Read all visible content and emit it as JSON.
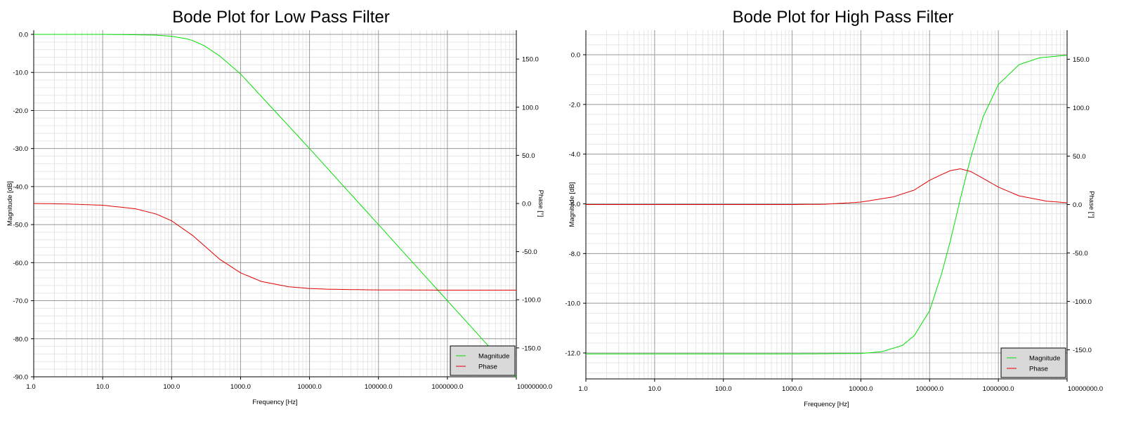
{
  "chart_data": [
    {
      "type": "line",
      "title": "Bode Plot for Low Pass Filter",
      "xlabel": "Frequency [Hz]",
      "ylabel": "Magnitude [dB]",
      "y2label": "Phase [°]",
      "xscale": "log",
      "xlim": [
        1,
        10000000
      ],
      "ylim": [
        -90,
        0
      ],
      "y2lim": [
        -180,
        180
      ],
      "xticks": [
        "1.0",
        "10.0",
        "100.0",
        "1000.0",
        "10000.0",
        "100000.0",
        "1000000.0",
        "10000000.0"
      ],
      "yticks": [
        "0.0",
        "-10.0",
        "-20.0",
        "-30.0",
        "-40.0",
        "-50.0",
        "-60.0",
        "-70.0",
        "-80.0",
        "-90.0"
      ],
      "y2ticks": [
        "150.0",
        "100.0",
        "50.0",
        "0.0",
        "-50.0",
        "-100.0",
        "-150.0"
      ],
      "grid": true,
      "legend_position": "bottom-right",
      "series": [
        {
          "name": "Magnitude",
          "axis": "left",
          "color": "#00e000",
          "x": [
            1,
            10,
            30,
            60,
            100,
            160,
            200,
            300,
            500,
            1000,
            2000,
            5000,
            10000,
            100000,
            1000000,
            10000000
          ],
          "y": [
            0,
            0,
            -0.1,
            -0.2,
            -0.5,
            -1.1,
            -1.6,
            -3,
            -5.7,
            -10.4,
            -16.3,
            -24.1,
            -30,
            -50,
            -70,
            -90
          ]
        },
        {
          "name": "Phase",
          "axis": "right",
          "color": "#e00000",
          "x": [
            1,
            3,
            10,
            30,
            60,
            100,
            200,
            300,
            500,
            1000,
            2000,
            5000,
            10000,
            20000,
            100000,
            1000000,
            10000000
          ],
          "y": [
            0,
            -0.5,
            -1.8,
            -5.5,
            -11,
            -18,
            -33,
            -44,
            -58,
            -72,
            -81,
            -86.5,
            -88.3,
            -89.1,
            -89.8,
            -90,
            -90
          ]
        }
      ]
    },
    {
      "type": "line",
      "title": "Bode Plot for High Pass Filter",
      "xlabel": "Frequency [Hz]",
      "ylabel": "Magnitude [dB]",
      "y2label": "Phase [°]",
      "xscale": "log",
      "xlim": [
        1,
        10000000
      ],
      "ylim": [
        -13,
        0.8
      ],
      "y2lim": [
        -180,
        180
      ],
      "xticks": [
        "1.0",
        "10.0",
        "100.0",
        "1000.0",
        "10000.0",
        "100000.0",
        "1000000.0",
        "10000000.0"
      ],
      "yticks": [
        "0.0",
        "-2.0",
        "-4.0",
        "-6.0",
        "-8.0",
        "-10.0",
        "-12.0"
      ],
      "y2ticks": [
        "150.0",
        "100.0",
        "50.0",
        "0.0",
        "-50.0",
        "-100.0",
        "-150.0"
      ],
      "grid": true,
      "legend_position": "bottom-right",
      "series": [
        {
          "name": "Magnitude",
          "axis": "left",
          "color": "#00e000",
          "x": [
            1,
            1000,
            10000,
            20000,
            40000,
            60000,
            100000,
            150000,
            200000,
            280000,
            400000,
            600000,
            1000000,
            2000000,
            4000000,
            10000000
          ],
          "y": [
            -12.04,
            -12.04,
            -12.02,
            -11.95,
            -11.7,
            -11.3,
            -10.3,
            -8.8,
            -7.5,
            -5.8,
            -4.1,
            -2.5,
            -1.2,
            -0.4,
            -0.12,
            -0.02
          ]
        },
        {
          "name": "Phase",
          "axis": "right",
          "color": "#e00000",
          "x": [
            1,
            1000,
            3000,
            10000,
            30000,
            60000,
            100000,
            150000,
            200000,
            280000,
            400000,
            600000,
            1000000,
            2000000,
            5000000,
            10000000
          ],
          "y": [
            0,
            0,
            0.3,
            2.5,
            8,
            15,
            25,
            31,
            35,
            36.9,
            34,
            27,
            18,
            9,
            3.5,
            1.8
          ]
        }
      ]
    }
  ]
}
